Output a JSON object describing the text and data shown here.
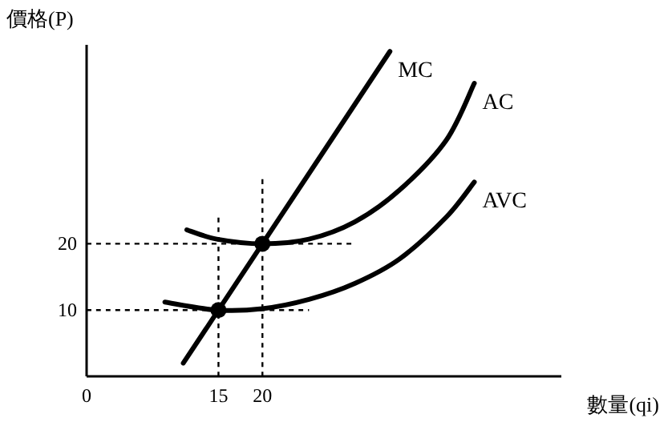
{
  "chart_data": {
    "type": "line",
    "xlabel": "數量(qi)",
    "ylabel": "價格(P)",
    "xlim": [
      0,
      54
    ],
    "ylim": [
      0,
      50
    ],
    "xticks": [
      {
        "value": 0,
        "label": "0"
      },
      15,
      20
    ],
    "yticks": [
      10,
      20
    ],
    "series": [
      {
        "name": "MC",
        "color": "#000000",
        "line_style": "solid",
        "x": [
          11,
          15,
          20,
          34.5
        ],
        "values": [
          2,
          10,
          20,
          49
        ]
      },
      {
        "name": "AC",
        "color": "#000000",
        "line_style": "solid",
        "x": [
          11.4,
          14.8,
          20,
          25.3,
          30.5,
          35.6,
          40.9,
          44.1
        ],
        "values": [
          22.1,
          20.7,
          20,
          20.7,
          23.3,
          28.1,
          35.6,
          44.2
        ]
      },
      {
        "name": "AVC",
        "color": "#000000",
        "line_style": "solid",
        "x": [
          8.9,
          14.8,
          20,
          25.3,
          30.5,
          35.6,
          40.9,
          44.1
        ],
        "values": [
          11.2,
          10,
          10.2,
          11.6,
          14,
          17.7,
          24,
          29.3
        ]
      },
      {
        "color": "#000000",
        "line_style": "dashed",
        "x": [
          0,
          30.5
        ],
        "values": [
          20,
          20
        ]
      },
      {
        "color": "#000000",
        "line_style": "dashed",
        "x": [
          0,
          25.3
        ],
        "values": [
          10,
          10
        ]
      },
      {
        "color": "#000000",
        "line_style": "dashed",
        "x": [
          15,
          15
        ],
        "values": [
          0,
          24.4
        ]
      },
      {
        "color": "#000000",
        "line_style": "dashed",
        "x": [
          20,
          20
        ],
        "values": [
          0,
          30.2
        ]
      },
      {
        "type": "scatter",
        "color": "#000000",
        "marker": "circle",
        "x": [
          15,
          20
        ],
        "values": [
          10,
          20
        ]
      }
    ]
  }
}
